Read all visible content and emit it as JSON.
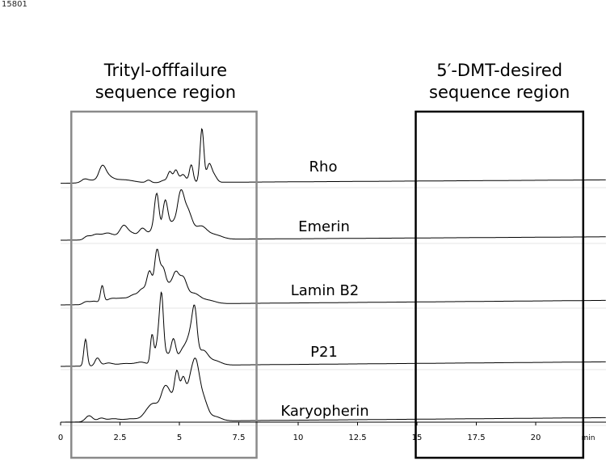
{
  "figure_id": "15801",
  "chart_data": {
    "type": "line",
    "title": "",
    "xlabel": "",
    "x_unit": "min",
    "xlim": [
      0,
      22.5
    ],
    "x_ticks": [
      0,
      2.5,
      5,
      7.5,
      10,
      12.5,
      15,
      17.5,
      20
    ],
    "x_tick_labels": [
      "0",
      "2.5",
      "5",
      "7.5",
      "10",
      "12.5",
      "15",
      "17.5",
      "20"
    ],
    "grid": true,
    "regions": [
      {
        "label_lines": [
          "Trityl-offfailure",
          "sequence region"
        ],
        "x_start": 0.45,
        "x_end": 8.25,
        "color": "#8a8a8a"
      },
      {
        "label_lines": [
          "5′-DMT-desired",
          "sequence region"
        ],
        "x_start": 14.95,
        "x_end": 22.0,
        "color": "#000000"
      }
    ],
    "peak_shape": {
      "min_width": 0.07
    },
    "series": [
      {
        "name": "Rho",
        "baseline_start": 0.04,
        "baseline_end": 0.16,
        "peaks": [
          [
            1.0,
            0.08,
            0.12
          ],
          [
            1.25,
            0.1,
            0.28
          ],
          [
            1.75,
            0.45,
            0.14
          ],
          [
            1.95,
            0.22,
            0.22
          ],
          [
            2.5,
            0.1,
            0.35
          ],
          [
            3.0,
            0.04,
            0.3
          ],
          [
            3.7,
            0.09,
            0.1
          ],
          [
            4.35,
            0.08,
            0.12
          ],
          [
            4.6,
            0.38,
            0.09
          ],
          [
            4.85,
            0.43,
            0.09
          ],
          [
            5.15,
            0.28,
            0.12
          ],
          [
            5.5,
            0.62,
            0.08
          ],
          [
            5.95,
            1.9,
            0.08
          ],
          [
            6.25,
            0.6,
            0.1
          ],
          [
            6.45,
            0.25,
            0.12
          ]
        ]
      },
      {
        "name": "Emerin",
        "baseline_start": 0.0,
        "baseline_end": 0.12,
        "peaks": [
          [
            1.1,
            0.1,
            0.12
          ],
          [
            1.5,
            0.2,
            0.22
          ],
          [
            1.95,
            0.18,
            0.18
          ],
          [
            2.25,
            0.12,
            0.2
          ],
          [
            2.65,
            0.45,
            0.16
          ],
          [
            3.0,
            0.22,
            0.2
          ],
          [
            3.45,
            0.38,
            0.15
          ],
          [
            3.85,
            0.28,
            0.16
          ],
          [
            4.05,
            1.5,
            0.1
          ],
          [
            4.4,
            1.3,
            0.11
          ],
          [
            4.7,
            0.55,
            0.16
          ],
          [
            5.05,
            1.45,
            0.14
          ],
          [
            5.35,
            0.95,
            0.18
          ],
          [
            5.9,
            0.45,
            0.25
          ],
          [
            6.5,
            0.15,
            0.3
          ]
        ]
      },
      {
        "name": "Lamin B2",
        "baseline_start": 0.0,
        "baseline_end": 0.16,
        "peaks": [
          [
            1.05,
            0.08,
            0.12
          ],
          [
            1.4,
            0.12,
            0.2
          ],
          [
            1.75,
            0.6,
            0.07
          ],
          [
            2.1,
            0.18,
            0.22
          ],
          [
            2.6,
            0.2,
            0.25
          ],
          [
            3.1,
            0.3,
            0.2
          ],
          [
            3.45,
            0.45,
            0.15
          ],
          [
            3.75,
            1.1,
            0.12
          ],
          [
            4.05,
            1.7,
            0.1
          ],
          [
            4.3,
            1.2,
            0.13
          ],
          [
            4.6,
            0.55,
            0.14
          ],
          [
            4.85,
            0.9,
            0.13
          ],
          [
            5.15,
            0.85,
            0.16
          ],
          [
            5.6,
            0.35,
            0.25
          ],
          [
            6.2,
            0.12,
            0.3
          ]
        ]
      },
      {
        "name": "P21",
        "baseline_start": 0.0,
        "baseline_end": 0.16,
        "peaks": [
          [
            1.05,
            0.95,
            0.05
          ],
          [
            1.55,
            0.28,
            0.1
          ],
          [
            2.0,
            0.1,
            0.2
          ],
          [
            2.7,
            0.08,
            0.3
          ],
          [
            3.4,
            0.12,
            0.25
          ],
          [
            3.85,
            1.05,
            0.07
          ],
          [
            4.1,
            0.85,
            0.1
          ],
          [
            4.25,
            2.15,
            0.08
          ],
          [
            4.45,
            0.4,
            0.15
          ],
          [
            4.75,
            0.85,
            0.1
          ],
          [
            5.15,
            0.55,
            0.18
          ],
          [
            5.5,
            1.05,
            0.16
          ],
          [
            5.65,
            1.3,
            0.1
          ],
          [
            6.0,
            0.5,
            0.2
          ],
          [
            6.5,
            0.15,
            0.25
          ]
        ]
      },
      {
        "name": "Karyopherin",
        "baseline_start": 0.0,
        "baseline_end": 0.16,
        "peaks": [
          [
            1.2,
            0.22,
            0.15
          ],
          [
            1.7,
            0.12,
            0.15
          ],
          [
            2.2,
            0.1,
            0.25
          ],
          [
            3.0,
            0.1,
            0.35
          ],
          [
            3.65,
            0.28,
            0.2
          ],
          [
            3.95,
            0.5,
            0.2
          ],
          [
            4.4,
            1.15,
            0.18
          ],
          [
            4.7,
            0.55,
            0.15
          ],
          [
            4.9,
            1.45,
            0.1
          ],
          [
            5.15,
            1.3,
            0.11
          ],
          [
            5.45,
            1.2,
            0.16
          ],
          [
            5.7,
            1.65,
            0.15
          ],
          [
            6.0,
            0.75,
            0.18
          ],
          [
            6.5,
            0.15,
            0.25
          ]
        ]
      }
    ]
  }
}
